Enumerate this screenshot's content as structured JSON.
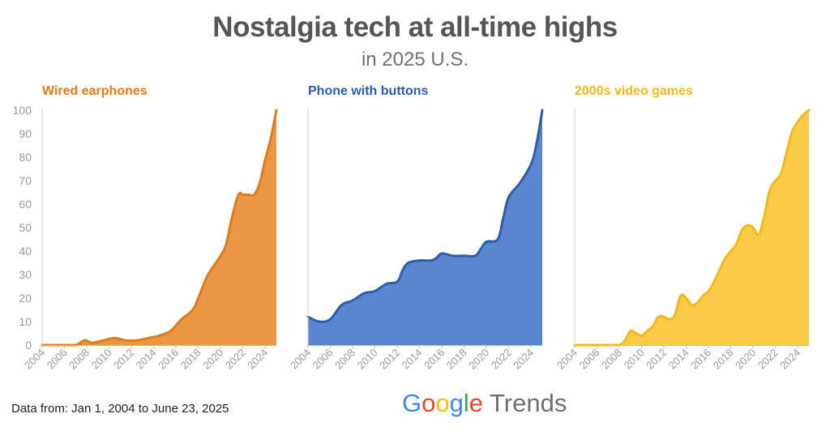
{
  "header": {
    "title": "Nostalgia tech at all-time highs",
    "subtitle": "in 2025 U.S."
  },
  "footer": {
    "note": "Data from: Jan 1, 2004 to June 23, 2025",
    "brand_google": "Google",
    "brand_trends": "Trends"
  },
  "brand_colors": [
    "#4285F4",
    "#EA4335",
    "#FBBC05",
    "#4285F4",
    "#34A853",
    "#EA4335"
  ],
  "chart_data": [
    {
      "type": "area",
      "title": "Wired earphones",
      "color": "#E07B18",
      "fill": "#E99645",
      "x": [
        2004,
        2005,
        2006,
        2007,
        2007.8,
        2008.5,
        2009.5,
        2010.5,
        2011.5,
        2012.5,
        2013.5,
        2014.5,
        2015.5,
        2016.5,
        2017.5,
        2018,
        2018.5,
        2019,
        2020,
        2020.5,
        2021,
        2021.6,
        2022,
        2022.5,
        2023,
        2023.5,
        2024,
        2024.5,
        2025
      ],
      "y": [
        0,
        0,
        0,
        0,
        2,
        1,
        2,
        3,
        2,
        2,
        3,
        4,
        6,
        11,
        15,
        20,
        26,
        31,
        38,
        43,
        54,
        64,
        64,
        64,
        64,
        69,
        79,
        88,
        100
      ],
      "ylim": [
        0,
        100
      ],
      "xlim": [
        2004,
        2025
      ],
      "yticks": [
        0,
        10,
        20,
        30,
        40,
        50,
        60,
        70,
        80,
        90,
        100
      ],
      "xticks": [
        2004,
        2006,
        2008,
        2010,
        2012,
        2014,
        2016,
        2018,
        2020,
        2022,
        2024
      ],
      "grid": false
    },
    {
      "type": "area",
      "title": "Phone with buttons",
      "color": "#2A5DB0",
      "fill": "#5A86CF",
      "x": [
        2004,
        2005,
        2006,
        2007,
        2008,
        2009,
        2010,
        2011,
        2012,
        2012.5,
        2013,
        2014,
        2015,
        2015.5,
        2016,
        2017,
        2018,
        2019,
        2019.5,
        2020,
        2021,
        2021.5,
        2022,
        2023,
        2024,
        2024.5,
        2025
      ],
      "y": [
        12,
        10,
        11,
        17,
        19,
        22,
        23,
        26,
        27,
        32,
        35,
        36,
        36,
        37,
        39,
        38,
        38,
        38,
        41,
        44,
        45,
        54,
        63,
        69,
        77,
        86,
        100
      ],
      "ylim": [
        0,
        100
      ],
      "xlim": [
        2004,
        2025
      ],
      "xticks": [
        2004,
        2006,
        2008,
        2010,
        2012,
        2014,
        2016,
        2018,
        2020,
        2022,
        2024
      ],
      "grid": false
    },
    {
      "type": "area",
      "title": "2000s video games",
      "color": "#F5B915",
      "fill": "#F9CB47",
      "x": [
        2004,
        2005,
        2006,
        2007,
        2008,
        2008.5,
        2009,
        2009.5,
        2010,
        2010.5,
        2011,
        2011.5,
        2012,
        2012.5,
        2013,
        2013.5,
        2014,
        2014.5,
        2015,
        2015.5,
        2016,
        2016.5,
        2017,
        2017.5,
        2018,
        2018.5,
        2019,
        2019.5,
        2020,
        2020.5,
        2021,
        2021.5,
        2022,
        2022.5,
        2023,
        2023.5,
        2024,
        2024.5,
        2025
      ],
      "y": [
        0,
        0,
        0,
        0,
        0,
        2,
        6,
        5,
        4,
        6,
        8,
        12,
        12,
        11,
        13,
        21,
        20,
        17,
        18,
        21,
        23,
        27,
        32,
        37,
        40,
        43,
        49,
        51,
        50,
        47,
        55,
        66,
        70,
        73,
        82,
        91,
        95,
        98,
        100
      ],
      "ylim": [
        0,
        100
      ],
      "xlim": [
        2004,
        2025
      ],
      "xticks": [
        2004,
        2006,
        2008,
        2010,
        2012,
        2014,
        2016,
        2018,
        2020,
        2022,
        2024
      ],
      "grid": false
    }
  ]
}
